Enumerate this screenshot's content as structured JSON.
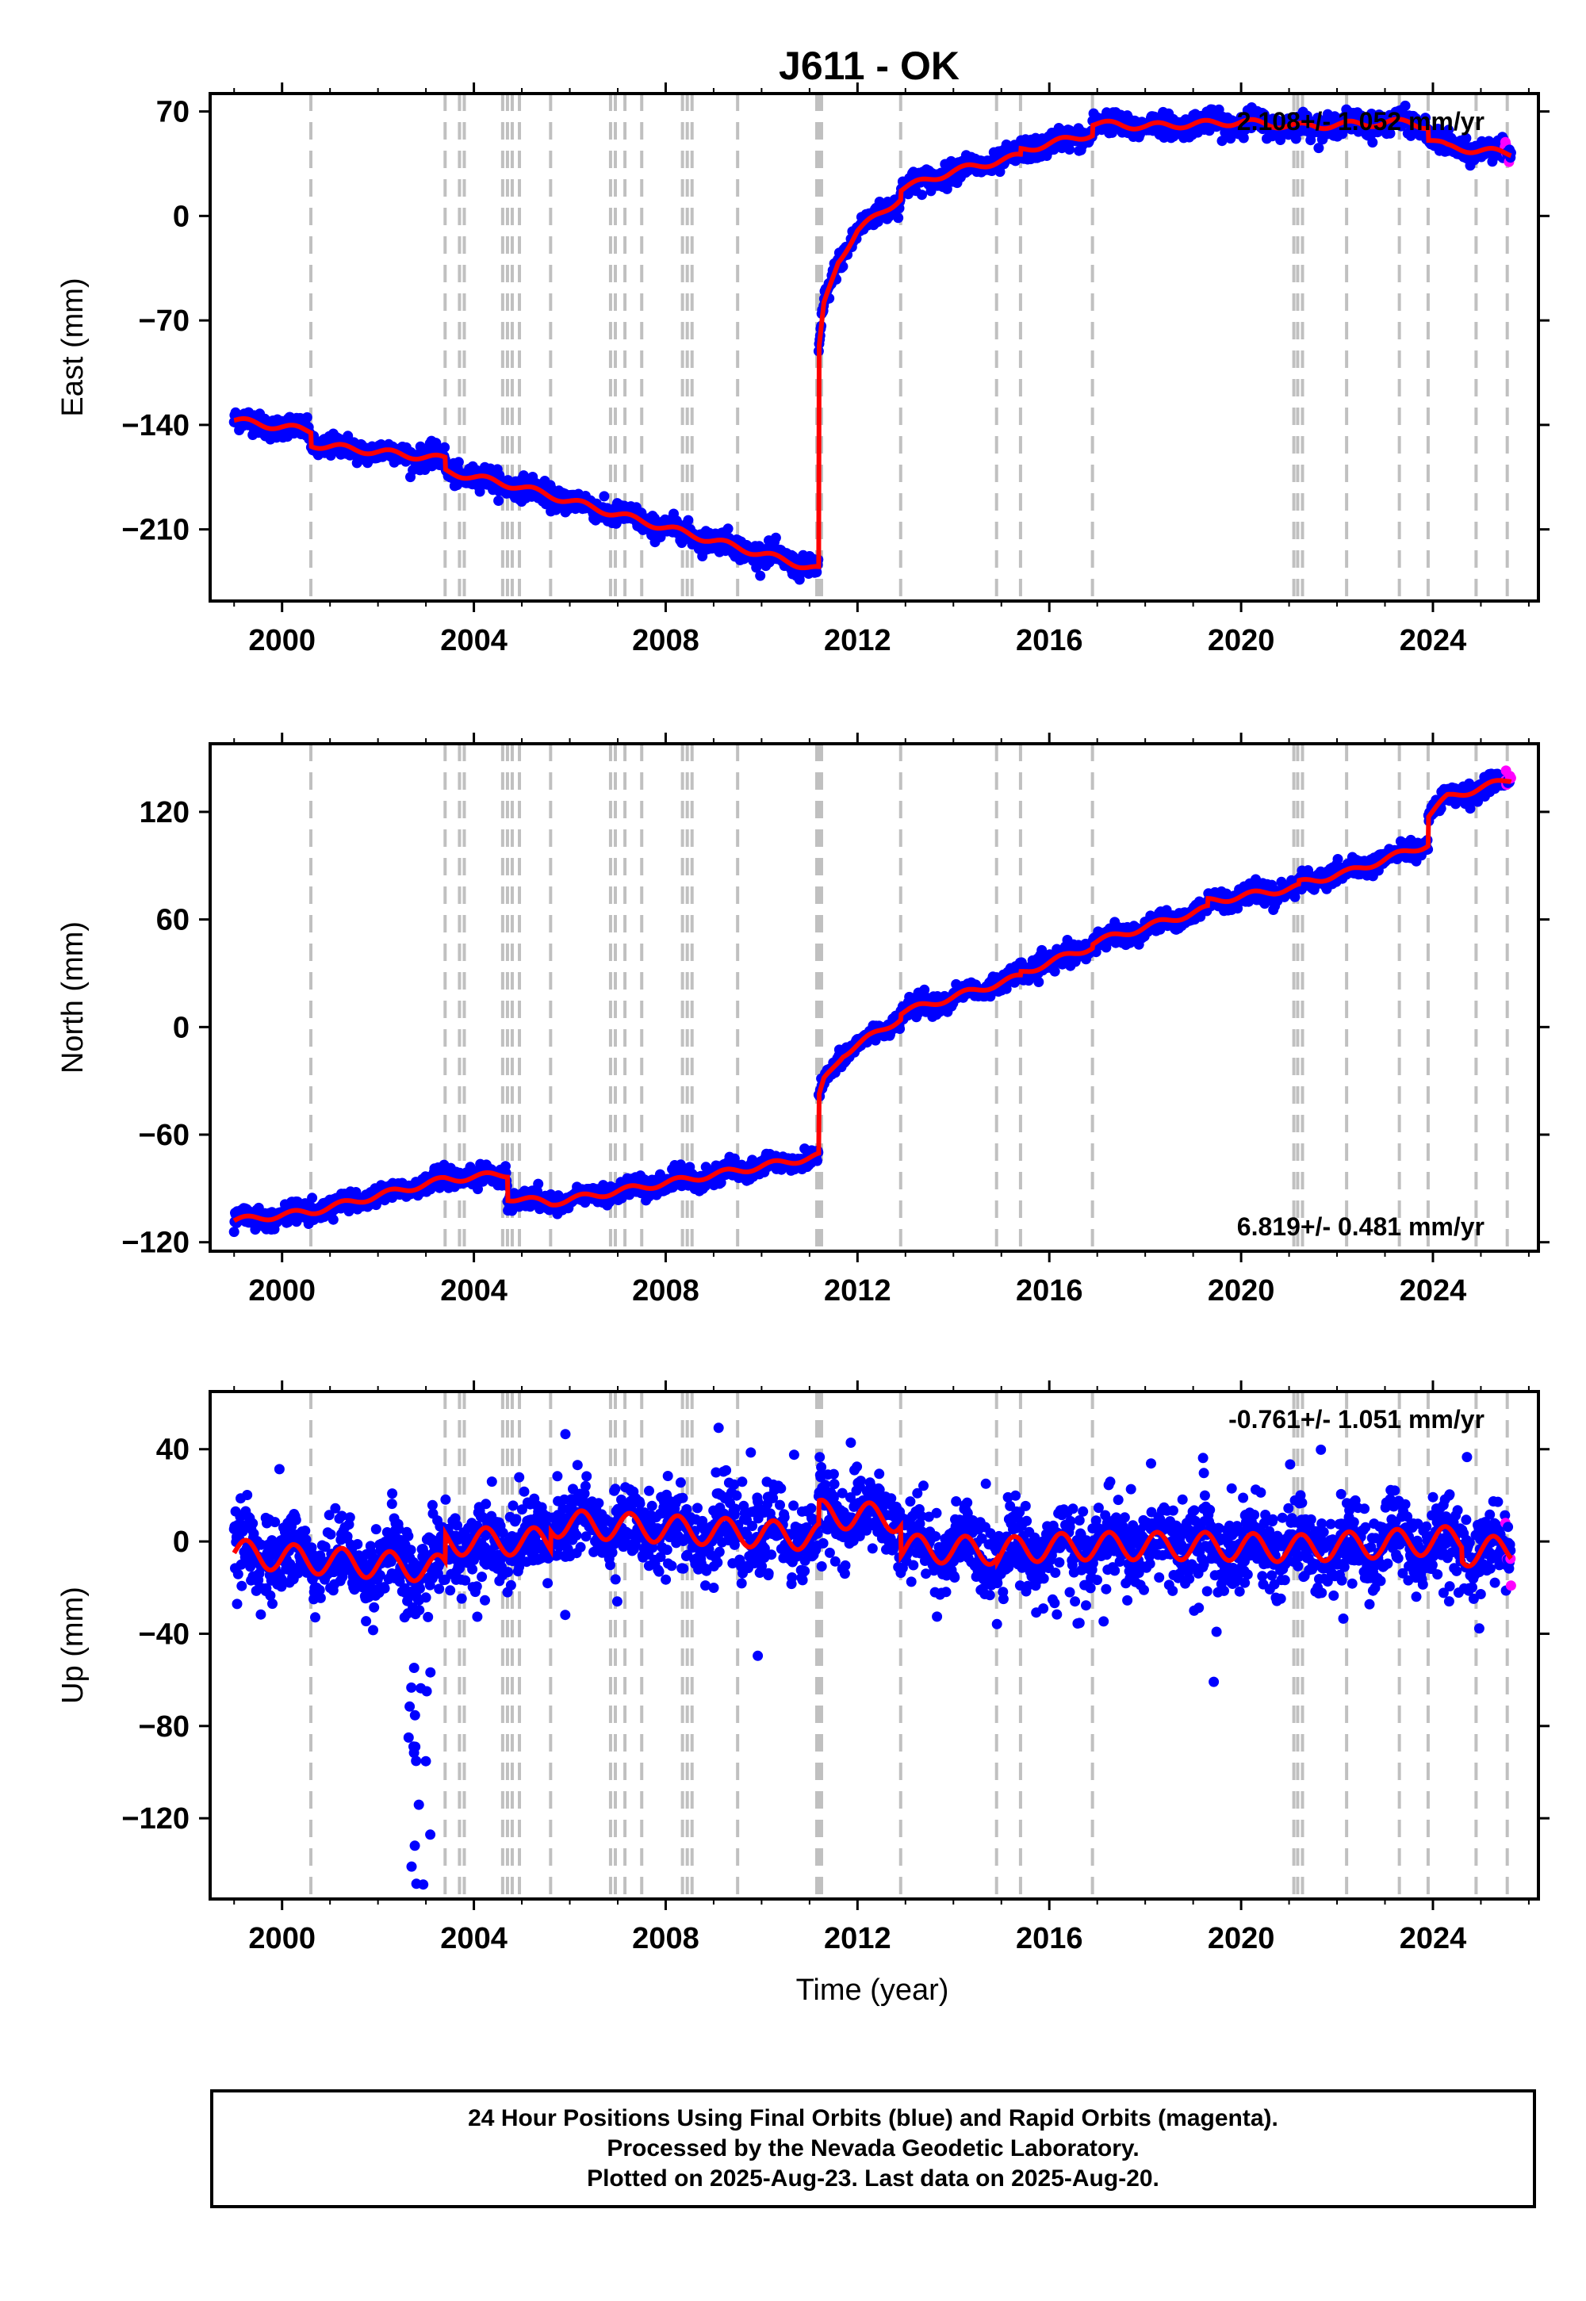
{
  "title": "J611 - OK",
  "xlabel": "Time (year)",
  "colors": {
    "final": "#0000ff",
    "rapid": "#ff00ff",
    "model": "#ff0000",
    "event": "#c0c0c0",
    "axis": "#000000"
  },
  "footer": {
    "line1": "24 Hour Positions Using Final Orbits (blue) and Rapid Orbits (magenta).",
    "line2": "Processed by the Nevada Geodetic Laboratory.",
    "line3": "Plotted on 2025-Aug-23. Last data on 2025-Aug-20."
  },
  "chart_data": [
    {
      "type": "scatter",
      "component": "east",
      "ylabel": "East (mm)",
      "rate": "2.108+/- 1.052 mm/yr",
      "rate_position": "top-right",
      "xlim": [
        1998.5,
        2026.2
      ],
      "ylim": [
        -258,
        82
      ],
      "yticks": [
        70,
        0,
        -70,
        -140,
        -210
      ],
      "xticks": [
        2000,
        2004,
        2008,
        2012,
        2016,
        2020,
        2024
      ],
      "model_knots": [
        [
          1999.0,
          -137
        ],
        [
          2000.6,
          -144
        ],
        [
          2000.6,
          -153
        ],
        [
          2003.4,
          -163
        ],
        [
          2003.4,
          -171
        ],
        [
          2004.9,
          -181
        ],
        [
          2007.0,
          -200
        ],
        [
          2009.5,
          -222
        ],
        [
          2011.19,
          -237
        ],
        [
          2011.19,
          -92
        ],
        [
          2011.3,
          -60
        ],
        [
          2011.6,
          -30
        ],
        [
          2012.0,
          -10
        ],
        [
          2012.9,
          12
        ],
        [
          2012.9,
          18
        ],
        [
          2014.0,
          30
        ],
        [
          2015.4,
          40
        ],
        [
          2015.4,
          44
        ],
        [
          2016.9,
          55
        ],
        [
          2016.9,
          62
        ],
        [
          2018.0,
          60
        ],
        [
          2020.0,
          63
        ],
        [
          2021.2,
          60
        ],
        [
          2023.5,
          63
        ],
        [
          2023.9,
          60
        ],
        [
          2023.9,
          52
        ],
        [
          2024.3,
          46
        ],
        [
          2025.6,
          42
        ]
      ],
      "seasonal_amp": 2.2,
      "scatter_sd": 3.6
    },
    {
      "type": "scatter",
      "component": "north",
      "ylabel": "North (mm)",
      "rate": "6.819+/- 0.481 mm/yr",
      "rate_position": "bottom-right",
      "xlim": [
        1998.5,
        2026.2
      ],
      "ylim": [
        -125,
        158
      ],
      "yticks": [
        120,
        60,
        0,
        -60,
        -120
      ],
      "xticks": [
        2000,
        2004,
        2008,
        2012,
        2016,
        2020,
        2024
      ],
      "model_knots": [
        [
          1999.0,
          -108
        ],
        [
          2000.6,
          -103
        ],
        [
          2003.4,
          -85
        ],
        [
          2004.7,
          -82
        ],
        [
          2004.7,
          -95
        ],
        [
          2005.6,
          -98
        ],
        [
          2009.5,
          -80
        ],
        [
          2011.19,
          -72
        ],
        [
          2011.19,
          -40
        ],
        [
          2011.3,
          -30
        ],
        [
          2011.7,
          -15
        ],
        [
          2012.9,
          5
        ],
        [
          2012.9,
          8
        ],
        [
          2015.4,
          28
        ],
        [
          2015.4,
          30
        ],
        [
          2016.9,
          45
        ],
        [
          2016.9,
          47
        ],
        [
          2019.3,
          66
        ],
        [
          2019.3,
          70
        ],
        [
          2021.2,
          78
        ],
        [
          2021.2,
          80
        ],
        [
          2022.2,
          86
        ],
        [
          2023.9,
          102
        ],
        [
          2023.9,
          118
        ],
        [
          2024.3,
          128
        ],
        [
          2025.6,
          138
        ]
      ],
      "seasonal_amp": 1.8,
      "scatter_sd": 2.6
    },
    {
      "type": "scatter",
      "component": "up",
      "ylabel": "Up (mm)",
      "rate": "-0.761+/- 1.051 mm/yr",
      "rate_position": "top-right",
      "xlim": [
        1998.5,
        2026.2
      ],
      "ylim": [
        -155,
        65
      ],
      "yticks": [
        40,
        0,
        -40,
        -80,
        -120
      ],
      "xticks": [
        2000,
        2004,
        2008,
        2012,
        2016,
        2020,
        2024
      ],
      "model_knots": [
        [
          1999.0,
          -5
        ],
        [
          2000.6,
          -8
        ],
        [
          2003.4,
          -12
        ],
        [
          2003.4,
          0
        ],
        [
          2005.6,
          0
        ],
        [
          2005.6,
          8
        ],
        [
          2011.19,
          2
        ],
        [
          2011.19,
          12
        ],
        [
          2012.9,
          10
        ],
        [
          2012.9,
          -3
        ],
        [
          2014.9,
          -4
        ],
        [
          2014.9,
          -6
        ],
        [
          2015.4,
          -3
        ],
        [
          2016.9,
          -2
        ],
        [
          2019.3,
          -2
        ],
        [
          2021.2,
          -3
        ],
        [
          2023.9,
          0
        ],
        [
          2024.6,
          1
        ],
        [
          2024.6,
          -5
        ],
        [
          2025.6,
          -3
        ]
      ],
      "seasonal_amp": 6,
      "scatter_sd": 8
    }
  ],
  "event_lines": [
    2000.6,
    2003.4,
    2003.7,
    2003.8,
    2004.6,
    2004.7,
    2004.8,
    2004.95,
    2005.6,
    2006.85,
    2006.95,
    2007.15,
    2007.5,
    2008.35,
    2008.45,
    2008.55,
    2009.5,
    2011.15,
    2011.19,
    2011.25,
    2012.9,
    2014.9,
    2015.4,
    2016.9,
    2021.1,
    2021.18,
    2021.28,
    2022.2,
    2023.3,
    2023.9,
    2024.9,
    2025.55
  ],
  "data_start": 1999.0,
  "data_end": 2025.63,
  "rapid_start": 2025.5
}
